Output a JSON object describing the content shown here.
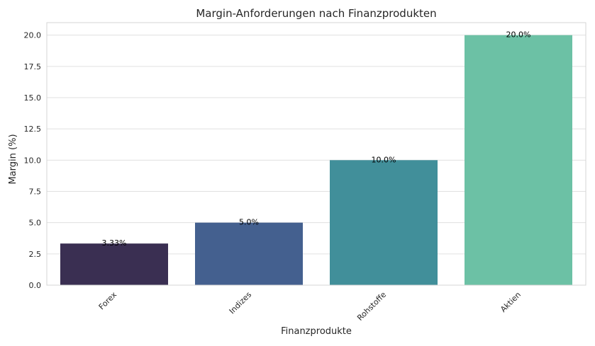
{
  "chart_data": {
    "type": "bar",
    "title": "Margin-Anforderungen nach Finanzprodukten",
    "xlabel": "Finanzprodukte",
    "ylabel": "Margin (%)",
    "categories": [
      "Forex",
      "Indizes",
      "Rohstoffe",
      "Aktien"
    ],
    "values": [
      3.33,
      5.0,
      10.0,
      20.0
    ],
    "data_labels": [
      "3.33%",
      "5.0%",
      "10.0%",
      "20.0%"
    ],
    "colors": [
      "#3a2f52",
      "#44608f",
      "#418f9a",
      "#6cc1a5"
    ],
    "ylim": [
      0,
      21
    ],
    "yticks": [
      0.0,
      2.5,
      5.0,
      7.5,
      10.0,
      12.5,
      15.0,
      17.5,
      20.0
    ],
    "ytick_labels": [
      "0.0",
      "2.5",
      "5.0",
      "7.5",
      "10.0",
      "12.5",
      "15.0",
      "17.5",
      "20.0"
    ],
    "grid": true,
    "xtick_rotation": 45
  }
}
